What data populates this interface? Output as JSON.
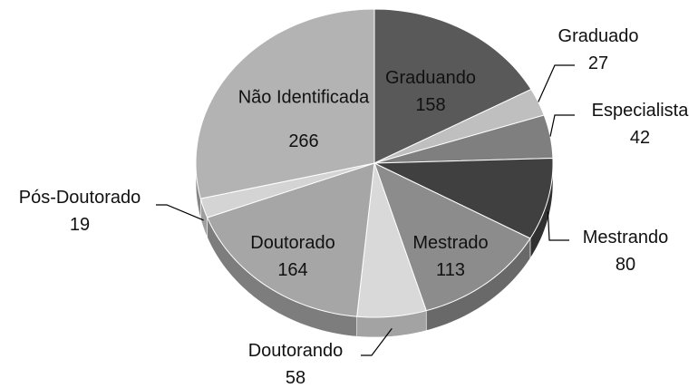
{
  "chart_data": {
    "type": "pie",
    "categories": [
      "Graduando",
      "Graduado",
      "Especialista",
      "Mestrando",
      "Mestrado",
      "Doutorando",
      "Doutorado",
      "Pós-Doutorado",
      "Não Identificada"
    ],
    "values": [
      158,
      27,
      42,
      80,
      113,
      58,
      164,
      19,
      266
    ],
    "colors": [
      "#595959",
      "#bfbfbf",
      "#7f7f7f",
      "#404040",
      "#8c8c8c",
      "#d9d9d9",
      "#a6a6a6",
      "#d4d4d4",
      "#b3b3b3"
    ]
  }
}
